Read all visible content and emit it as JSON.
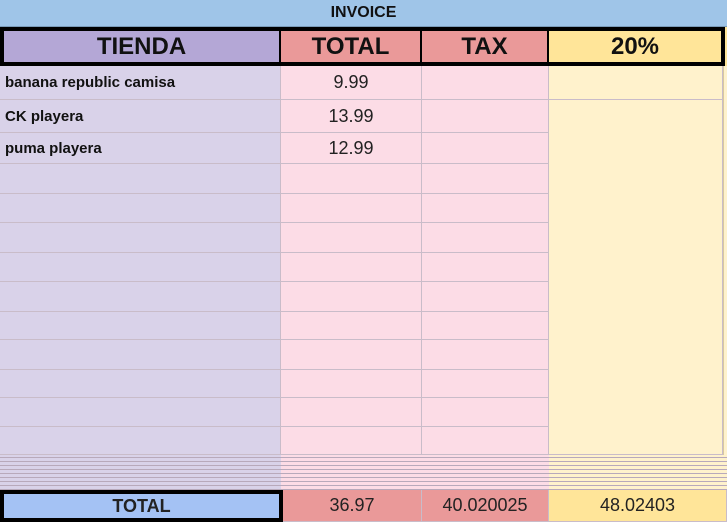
{
  "sheet_title": "INVOICE",
  "headers": [
    "TIENDA",
    "TOTAL",
    "TAX",
    "20%"
  ],
  "rows": [
    {
      "tienda": "banana republic camisa",
      "total": "9.99"
    },
    {
      "tienda": "CK playera",
      "total": "13.99"
    },
    {
      "tienda": "puma playera",
      "total": "12.99"
    }
  ],
  "totals": {
    "label": "TOTAL",
    "total": "36.97",
    "tax": "40.020025",
    "pct": "48.02403"
  },
  "colors": {
    "title": "#9fc5e8",
    "tienda_header": "#b4a7d6",
    "total_header": "#ea9999",
    "pct_header": "#ffe599",
    "total_label": "#a4c2f4"
  }
}
